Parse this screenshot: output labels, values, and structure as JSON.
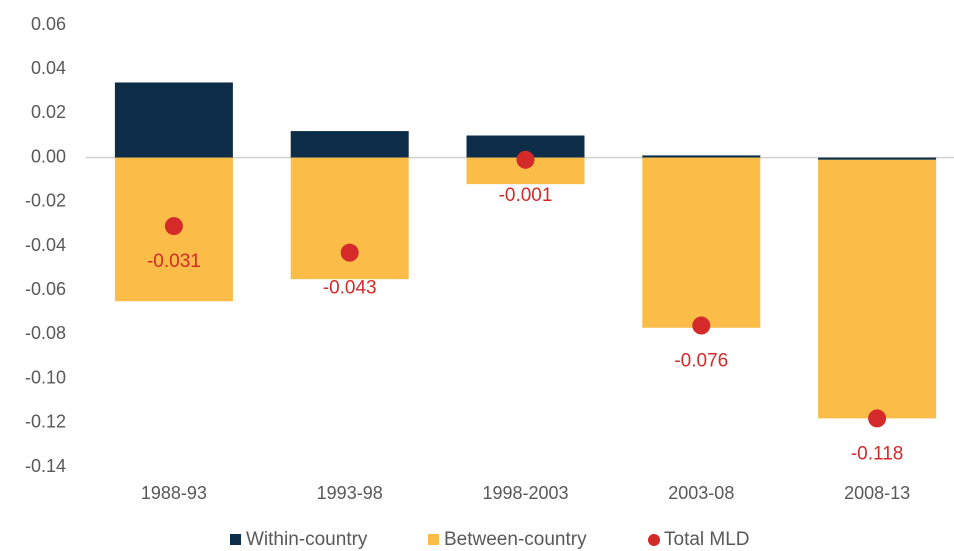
{
  "chart_data": {
    "type": "bar",
    "stacked": true,
    "categories": [
      "1988-93",
      "1993-98",
      "1998-2003",
      "2003-08",
      "2008-13"
    ],
    "series": [
      {
        "name": "Within-country",
        "type": "bar",
        "color": "#0e2d48",
        "values": [
          0.034,
          0.012,
          0.01,
          0.001,
          -0.001
        ]
      },
      {
        "name": "Between-country",
        "type": "bar",
        "color": "#fbbd48",
        "values": [
          -0.065,
          -0.055,
          -0.012,
          -0.077,
          -0.117
        ]
      },
      {
        "name": "Total MLD",
        "type": "scatter",
        "color": "#d42a2a",
        "values": [
          -0.031,
          -0.043,
          -0.001,
          -0.076,
          -0.118
        ]
      }
    ],
    "ylim": [
      -0.14,
      0.06
    ],
    "yticks": [
      0.06,
      0.04,
      0.02,
      {
        "value": 0,
        "label": "0.00"
      },
      -0.02,
      -0.04,
      -0.06,
      -0.08,
      {
        "value": -0.1,
        "label": "-0.10"
      },
      -0.12,
      -0.14
    ],
    "legend": "bottom"
  }
}
